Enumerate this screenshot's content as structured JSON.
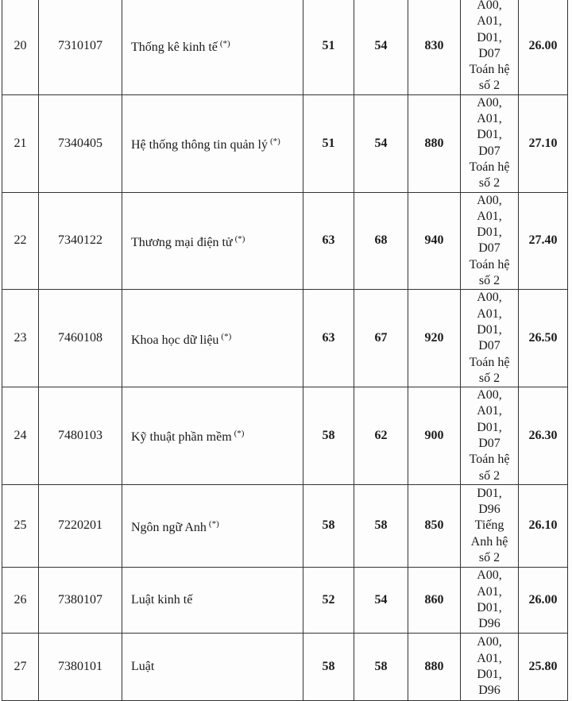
{
  "table": {
    "rows": [
      {
        "stt": "20",
        "code": "7310107",
        "name": "Thống kê kinh tế",
        "mark": "(*)",
        "c1": "51",
        "c2": "54",
        "c3": "830",
        "combo": [
          "A00,",
          "A01,",
          "D01,",
          "D07",
          "Toán hệ",
          "số 2"
        ],
        "score": "26.00"
      },
      {
        "stt": "21",
        "code": "7340405",
        "name": "Hệ thống thông tin quản lý",
        "mark": "(*)",
        "c1": "51",
        "c2": "54",
        "c3": "880",
        "combo": [
          "A00,",
          "A01,",
          "D01,",
          "D07",
          "Toán hệ",
          "số 2"
        ],
        "score": "27.10"
      },
      {
        "stt": "22",
        "code": "7340122",
        "name": "Thương mại điện tử",
        "mark": "(*)",
        "c1": "63",
        "c2": "68",
        "c3": "940",
        "combo": [
          "A00,",
          "A01,",
          "D01,",
          "D07",
          "Toán hệ",
          "số 2"
        ],
        "score": "27.40"
      },
      {
        "stt": "23",
        "code": "7460108",
        "name": "Khoa học dữ liệu",
        "mark": "(*)",
        "c1": "63",
        "c2": "67",
        "c3": "920",
        "combo": [
          "A00,",
          "A01,",
          "D01,",
          "D07",
          "Toán hệ",
          "số 2"
        ],
        "score": "26.50"
      },
      {
        "stt": "24",
        "code": "7480103",
        "name": "Kỹ thuật phần mềm",
        "mark": "(*)",
        "c1": "58",
        "c2": "62",
        "c3": "900",
        "combo": [
          "A00,",
          "A01,",
          "D01,",
          "D07",
          "Toán hệ",
          "số 2"
        ],
        "score": "26.30"
      },
      {
        "stt": "25",
        "code": "7220201",
        "name": "Ngôn ngữ Anh",
        "mark": "(*)",
        "c1": "58",
        "c2": "58",
        "c3": "850",
        "combo": [
          "D01,",
          "D96",
          "Tiếng",
          "Anh hệ",
          "số 2"
        ],
        "score": "26.10"
      },
      {
        "stt": "26",
        "code": "7380107",
        "name": "Luật kinh tế",
        "mark": "",
        "c1": "52",
        "c2": "54",
        "c3": "860",
        "combo": [
          "A00,",
          "A01,",
          "D01,",
          "D96"
        ],
        "score": "26.00"
      },
      {
        "stt": "27",
        "code": "7380101",
        "name": "Luật",
        "mark": "",
        "c1": "58",
        "c2": "58",
        "c3": "880",
        "combo": [
          "A00,",
          "A01,",
          "D01,",
          "D96"
        ],
        "score": "25.80"
      }
    ]
  }
}
